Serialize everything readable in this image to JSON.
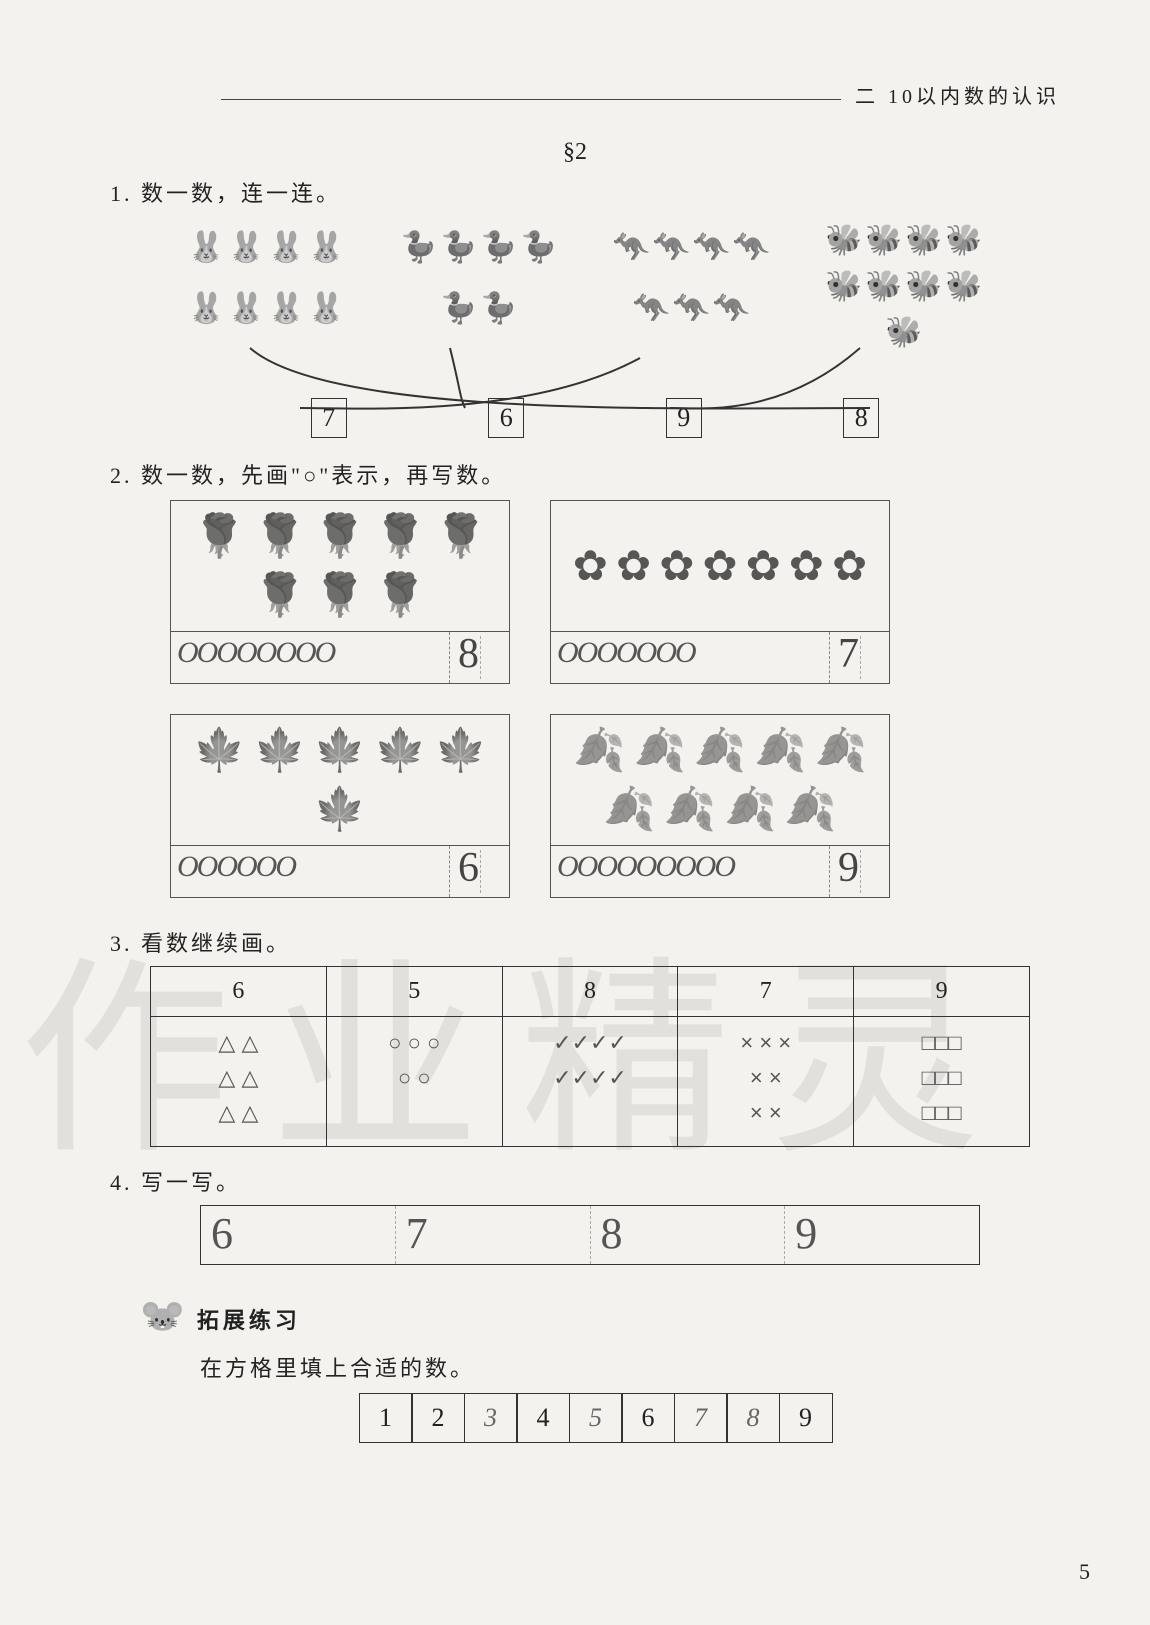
{
  "header": {
    "chapter": "二",
    "title": "10以内数的认识"
  },
  "section": "§2",
  "page_number": "5",
  "watermark": "作业精灵",
  "q1": {
    "prompt": "1. 数一数，连一连。",
    "groups": [
      {
        "name": "rabbits-group",
        "icon": "🐰",
        "count": 8
      },
      {
        "name": "ducks-group",
        "icon": "🦆",
        "count": 6
      },
      {
        "name": "kangaroos-group",
        "icon": "🦘",
        "count": 7
      },
      {
        "name": "bees-group",
        "icon": "🐝",
        "count": 9
      }
    ],
    "boxes": [
      "7",
      "6",
      "9",
      "8"
    ]
  },
  "q2": {
    "prompt": "2. 数一数，先画\"○\"表示，再写数。",
    "cells": [
      {
        "name": "roses",
        "icon": "🌹",
        "count": 8,
        "circles": "OOOOOOOO",
        "answer": "8"
      },
      {
        "name": "daisies",
        "icon": "✿",
        "count": 7,
        "circles": "OOOOOOO",
        "answer": "7"
      },
      {
        "name": "leaves",
        "icon": "🍁",
        "count": 6,
        "circles": "OOOOOO",
        "answer": "6"
      },
      {
        "name": "ginkgo",
        "icon": "🍂",
        "count": 9,
        "circles": "OOOOOOOOO",
        "answer": "9"
      }
    ]
  },
  "q3": {
    "prompt": "3. 看数继续画。",
    "headers": [
      "6",
      "5",
      "8",
      "7",
      "9"
    ],
    "shapes": [
      "△ △\n△ △\n△ △",
      "○ ○ ○\n○ ○",
      "✓✓✓✓\n✓✓✓✓",
      "× × ×\n× ×\n× ×",
      "□□□\n□□□\n□□□"
    ]
  },
  "q4": {
    "prompt": "4. 写一写。",
    "values": [
      "6",
      "7",
      "8",
      "9"
    ]
  },
  "ext": {
    "title": "拓展练习",
    "sub": "在方格里填上合适的数。",
    "cells": [
      {
        "v": "1",
        "hand": false
      },
      {
        "v": "2",
        "hand": false
      },
      {
        "v": "3",
        "hand": true
      },
      {
        "v": "4",
        "hand": false
      },
      {
        "v": "5",
        "hand": true
      },
      {
        "v": "6",
        "hand": false
      },
      {
        "v": "7",
        "hand": true
      },
      {
        "v": "8",
        "hand": true
      },
      {
        "v": "9",
        "hand": false
      }
    ]
  }
}
